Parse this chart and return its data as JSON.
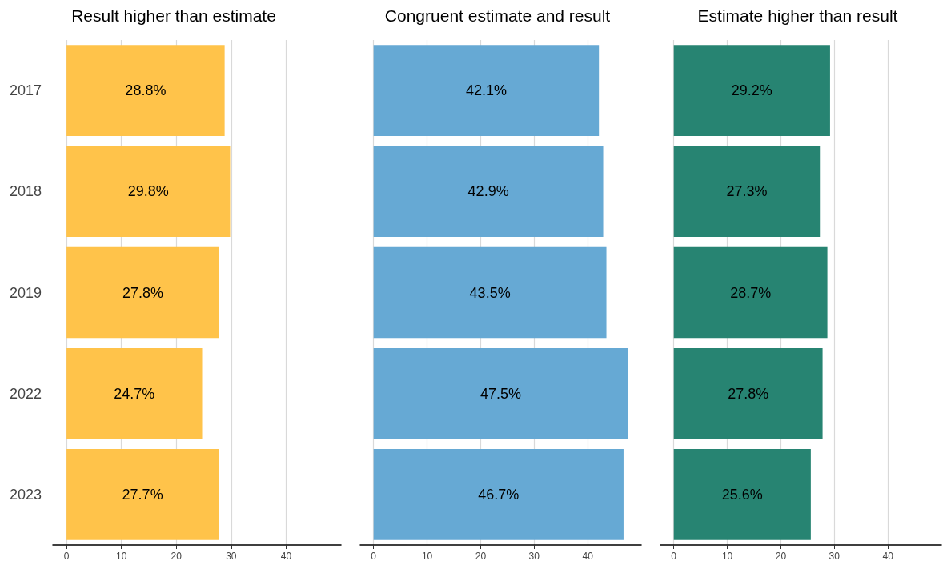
{
  "chart_data": [
    {
      "type": "bar",
      "orientation": "horizontal",
      "title": "Result higher than estimate",
      "categories": [
        "2017",
        "2018",
        "2019",
        "2022",
        "2023"
      ],
      "color": "#ffc34a",
      "values": [
        28.8,
        29.8,
        27.8,
        24.7,
        27.7
      ],
      "value_labels": [
        "28.8%",
        "29.8%",
        "27.8%",
        "24.7%",
        "27.7%"
      ],
      "xlim": [
        -2.5,
        50
      ],
      "xticks": [
        0,
        10,
        20,
        30,
        40
      ],
      "grid": "x"
    },
    {
      "type": "bar",
      "orientation": "horizontal",
      "title": "Congruent estimate and result",
      "categories": [
        "2017",
        "2018",
        "2019",
        "2022",
        "2023"
      ],
      "color": "#66a9d4",
      "values": [
        42.1,
        42.9,
        43.5,
        47.5,
        46.7
      ],
      "value_labels": [
        "42.1%",
        "42.9%",
        "43.5%",
        "47.5%",
        "46.7%"
      ],
      "xlim": [
        -2.5,
        50
      ],
      "xticks": [
        0,
        10,
        20,
        30,
        40
      ],
      "grid": "x",
      "tick_labels": "x"
    },
    {
      "type": "bar",
      "orientation": "horizontal",
      "title": "Estimate higher than result",
      "categories": [
        "2017",
        "2018",
        "2019",
        "2022",
        "2023"
      ],
      "color": "#278472",
      "values": [
        29.2,
        27.3,
        28.7,
        27.8,
        25.6
      ],
      "value_labels": [
        "29.2%",
        "27.3%",
        "28.7%",
        "27.8%",
        "25.6%"
      ],
      "xlim": [
        -2.5,
        50
      ],
      "xticks": [
        0,
        10,
        20,
        30,
        40
      ],
      "grid": "x",
      "tick_labels": "x"
    }
  ]
}
